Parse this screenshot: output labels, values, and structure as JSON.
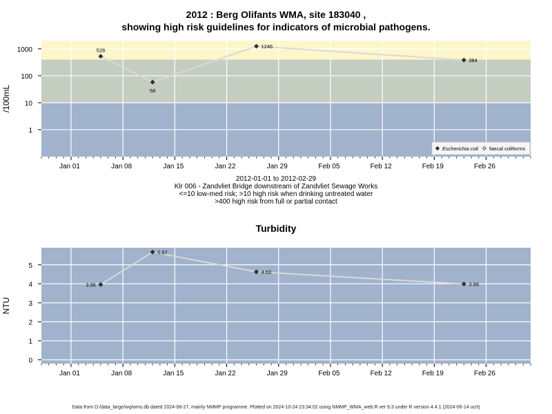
{
  "title_line1": "2012 : Berg Olifants WMA, site 183040 ,",
  "title_line2": "showing high risk guidelines for indicators of microbial pathogens.",
  "caption": {
    "line1": "2012-01-01 to 2012-02-29",
    "line2": "Klr 006 - Zandvliet Bridge downstream of Zandvliet Sewage Works",
    "line3": "<=10 low-med risk; >10 high risk when drinking untreated water",
    "line4": ">400 high risk from full or partial contact"
  },
  "footer": "Data from D:/data_large/wq/wms.db dated 2024-08-27, mainly NMMP programme. Plotted on 2024-10-24 23:34:02 using NMMP_WMA_web.R ver 9.3 under R version 4.4.1 (2024-06-14 ucrt)",
  "colors": {
    "band_high": "#fdf6c9",
    "band_mid": "#c4cdc0",
    "band_low": "#a1b2cd",
    "grid": "#ffffff",
    "line": "#d9d9d9",
    "point": "#333333"
  },
  "chart_data": [
    {
      "type": "line",
      "title": "",
      "xlabel": "",
      "ylabel": "/100mL",
      "yscale": "log",
      "ylim": [
        0.1,
        2000
      ],
      "xlim": [
        "2011-12-28",
        "2012-03-03"
      ],
      "yticks": [
        1,
        10,
        100,
        1000
      ],
      "ytick_labels": [
        "1",
        "10",
        "100",
        "1000"
      ],
      "xtick_labels": [
        "Jan 01",
        "Jan 08",
        "Jan 15",
        "Jan 22",
        "Jan 29",
        "Feb 05",
        "Feb 12",
        "Feb 19",
        "Feb 26"
      ],
      "bands": [
        {
          "from": 0.1,
          "to": 10
        },
        {
          "from": 10,
          "to": 400
        },
        {
          "from": 400,
          "to": 2000
        }
      ],
      "legend_position": "bottom-right",
      "legend": [
        {
          "label": "Escherichia coli",
          "marker": "filled-diamond",
          "italic": true
        },
        {
          "label": "faecal coliforms",
          "marker": "open-diamond",
          "italic": false
        }
      ],
      "series": [
        {
          "name": "Escherichia coli",
          "x": [
            "2012-01-05",
            "2012-01-12",
            "2012-01-26",
            "2012-02-23"
          ],
          "y": [
            528,
            58,
            1246,
            384
          ],
          "labels": [
            "528",
            "58",
            "1246",
            "384"
          ]
        }
      ],
      "grid": true
    },
    {
      "type": "line",
      "title": "Turbidity",
      "xlabel": "",
      "ylabel": "NTU",
      "yscale": "linear",
      "ylim": [
        -0.2,
        5.9
      ],
      "xlim": [
        "2011-12-28",
        "2012-03-03"
      ],
      "yticks": [
        0,
        1,
        2,
        3,
        4,
        5
      ],
      "ytick_labels": [
        "0",
        "1",
        "2",
        "3",
        "4",
        "5"
      ],
      "xtick_labels": [
        "Jan 01",
        "Jan 08",
        "Jan 15",
        "Jan 22",
        "Jan 29",
        "Feb 05",
        "Feb 12",
        "Feb 19",
        "Feb 26"
      ],
      "series": [
        {
          "name": "",
          "x": [
            "2012-01-05",
            "2012-01-12",
            "2012-01-26",
            "2012-02-23"
          ],
          "y": [
            3.96,
            5.67,
            4.63,
            3.99
          ],
          "labels": [
            "3.96",
            "5.67",
            "4.63",
            "3.99"
          ]
        }
      ],
      "grid": true
    }
  ]
}
